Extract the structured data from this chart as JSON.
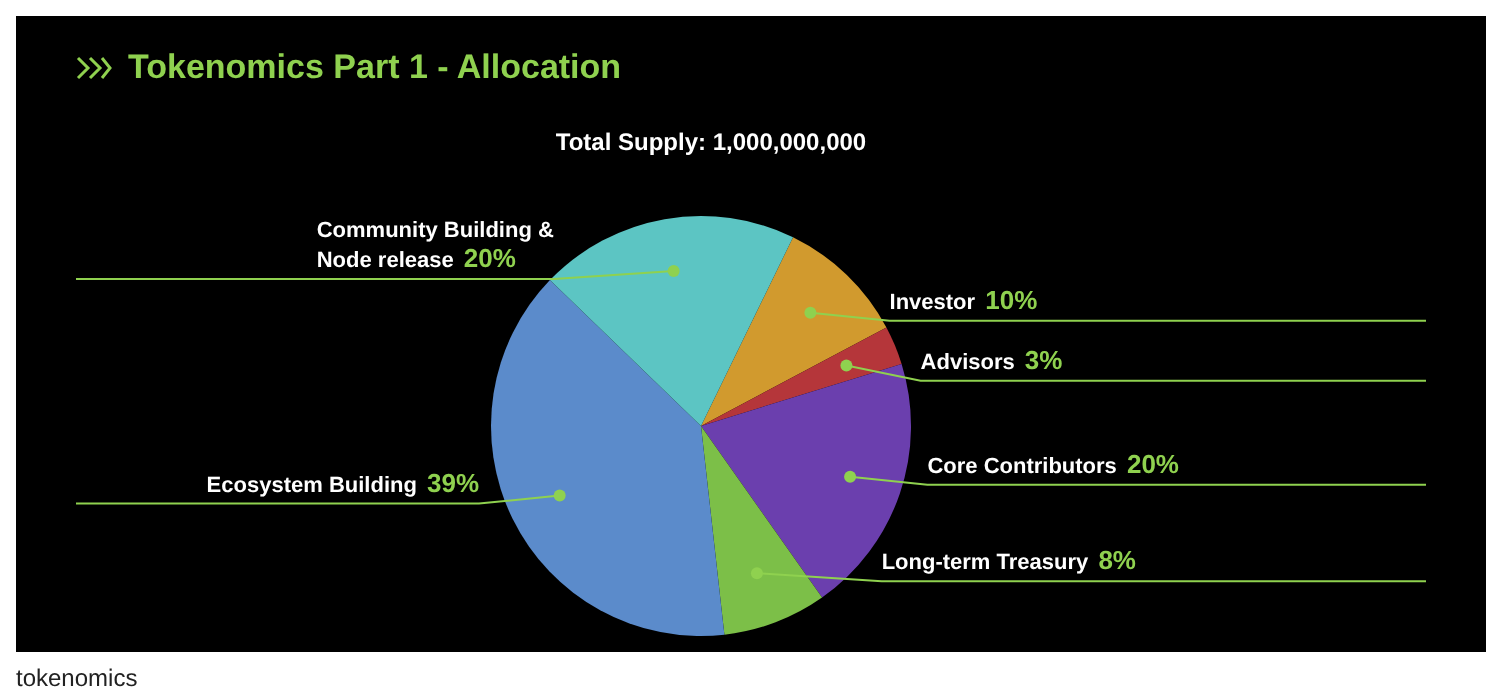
{
  "chart_data": {
    "type": "pie",
    "title": "Tokenomics Part 1 - Allocation",
    "subtitle": "Total Supply: 1,000,000,000",
    "categories": [
      "Investor",
      "Advisors",
      "Core Contributors",
      "Long-term Treasury",
      "Ecosystem Building",
      "Community Building & Node release"
    ],
    "values": [
      10,
      3,
      20,
      8,
      39,
      20
    ],
    "value_labels": [
      "10%",
      "3%",
      "20%",
      "8%",
      "39%",
      "20%"
    ],
    "colors": [
      "#d19a2e",
      "#b5363a",
      "#6b3fae",
      "#7cbf48",
      "#5b8bcb",
      "#5cc5c3"
    ],
    "legend": false,
    "annotations": [
      "tokenomics"
    ]
  }
}
